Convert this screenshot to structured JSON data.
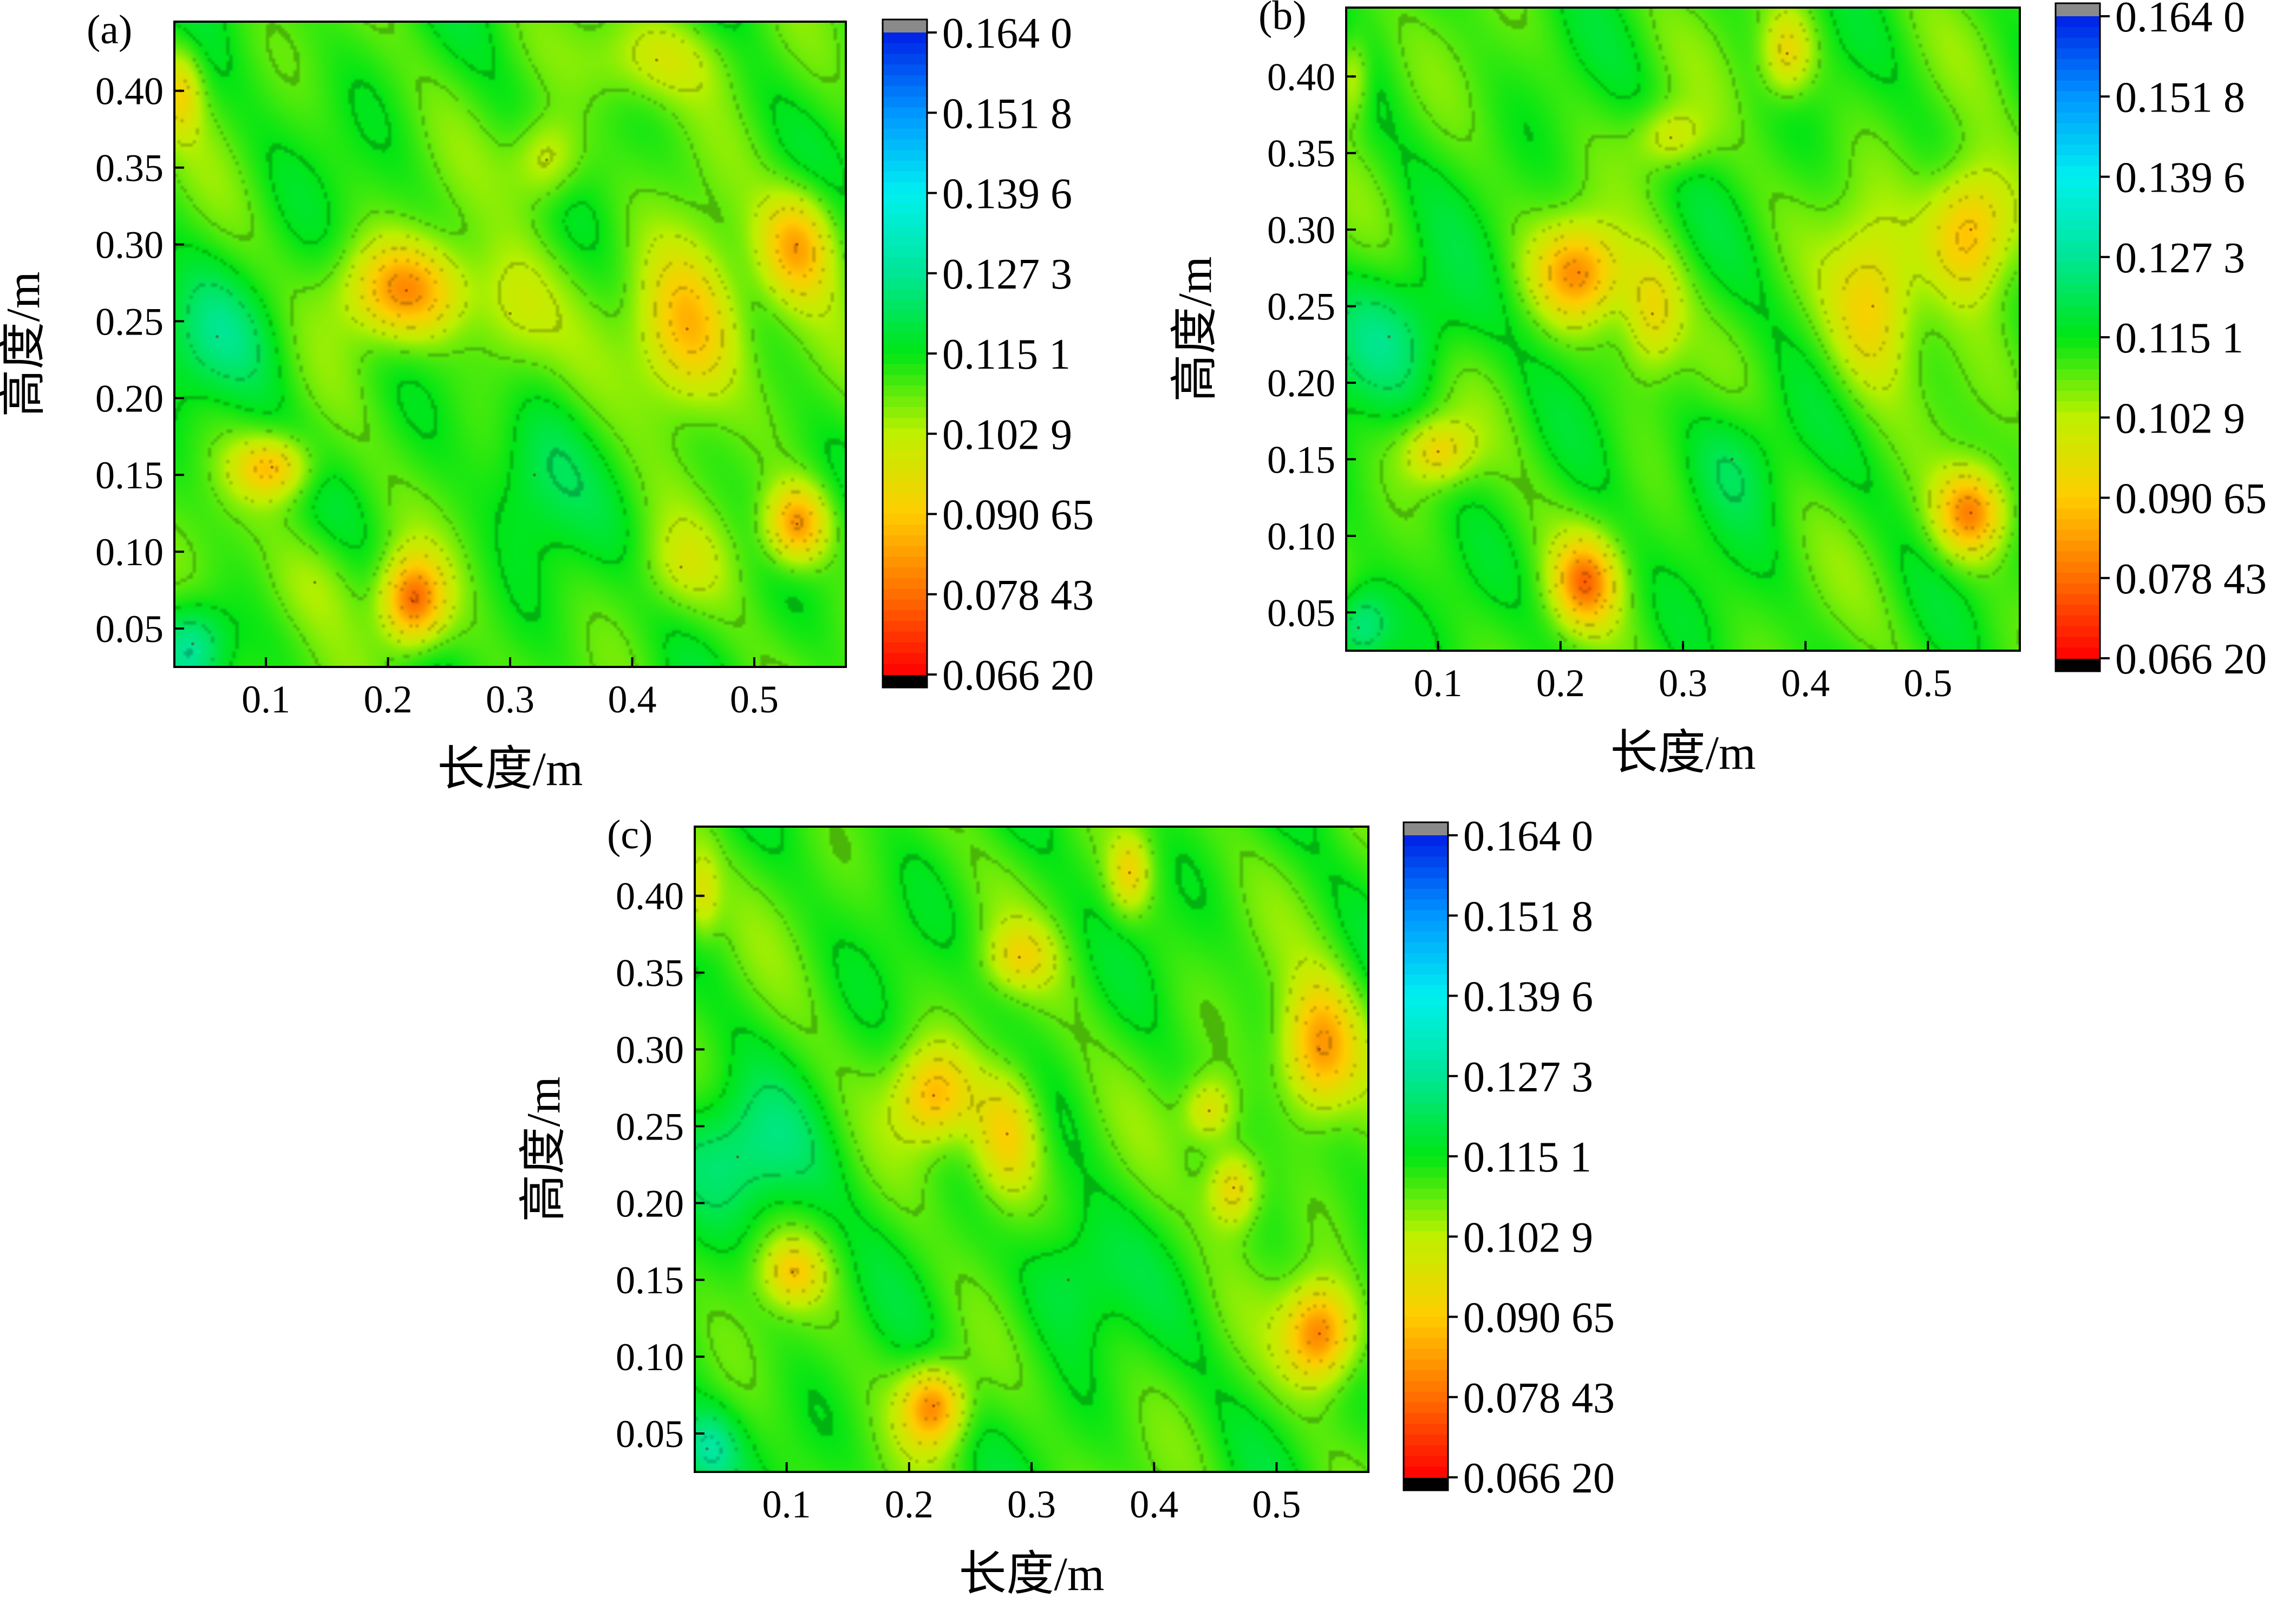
{
  "chart_data": [
    {
      "type": "heatmap",
      "panel_label": "(a)",
      "xlabel": "长度/m",
      "ylabel": "高度/m",
      "xlim": [
        0.025,
        0.575
      ],
      "ylim": [
        0.025,
        0.445
      ],
      "x_ticks": [
        "0.1",
        "0.2",
        "0.3",
        "0.4",
        "0.5"
      ],
      "y_ticks": [
        "0.05",
        "0.10",
        "0.15",
        "0.20",
        "0.25",
        "0.30",
        "0.35",
        "0.40"
      ],
      "colorbar_labels": [
        "0.164 0",
        "0.151 8",
        "0.139 6",
        "0.127 3",
        "0.115 1",
        "0.102 9",
        "0.090 65",
        "0.078 43",
        "0.066 20"
      ],
      "colorbar_values": [
        0.164,
        0.1518,
        0.1396,
        0.1273,
        0.1151,
        0.1029,
        0.09065,
        0.07843,
        0.0662
      ],
      "baseline_value": 0.112,
      "features": [
        {
          "x": 0.215,
          "y": 0.27,
          "value": 0.084,
          "sx": 0.035,
          "sy": 0.022
        },
        {
          "x": 0.445,
          "y": 0.245,
          "value": 0.086,
          "sx": 0.03,
          "sy": 0.038
        },
        {
          "x": 0.535,
          "y": 0.3,
          "value": 0.087,
          "sx": 0.022,
          "sy": 0.025
        },
        {
          "x": 0.535,
          "y": 0.118,
          "value": 0.083,
          "sx": 0.018,
          "sy": 0.018
        },
        {
          "x": 0.22,
          "y": 0.068,
          "value": 0.078,
          "sx": 0.018,
          "sy": 0.02
        },
        {
          "x": 0.105,
          "y": 0.155,
          "value": 0.09,
          "sx": 0.022,
          "sy": 0.014
        },
        {
          "x": 0.33,
          "y": 0.355,
          "value": 0.097,
          "sx": 0.02,
          "sy": 0.02
        },
        {
          "x": 0.3,
          "y": 0.255,
          "value": 0.101,
          "sx": 0.025,
          "sy": 0.03
        },
        {
          "x": 0.03,
          "y": 0.4,
          "value": 0.096,
          "sx": 0.012,
          "sy": 0.02
        },
        {
          "x": 0.32,
          "y": 0.15,
          "value": 0.12,
          "sx": 0.03,
          "sy": 0.035
        },
        {
          "x": 0.06,
          "y": 0.24,
          "value": 0.121,
          "sx": 0.04,
          "sy": 0.03
        },
        {
          "x": 0.04,
          "y": 0.04,
          "value": 0.127,
          "sx": 0.02,
          "sy": 0.02
        },
        {
          "x": 0.44,
          "y": 0.09,
          "value": 0.104,
          "sx": 0.025,
          "sy": 0.02
        },
        {
          "x": 0.14,
          "y": 0.08,
          "value": 0.105,
          "sx": 0.03,
          "sy": 0.025
        },
        {
          "x": 0.42,
          "y": 0.42,
          "value": 0.1,
          "sx": 0.04,
          "sy": 0.02
        }
      ]
    },
    {
      "type": "heatmap",
      "panel_label": "(b)",
      "xlabel": "长度/m",
      "ylabel": "高度/m",
      "xlim": [
        0.025,
        0.575
      ],
      "ylim": [
        0.025,
        0.445
      ],
      "x_ticks": [
        "0.1",
        "0.2",
        "0.3",
        "0.4",
        "0.5"
      ],
      "y_ticks": [
        "0.05",
        "0.10",
        "0.15",
        "0.20",
        "0.25",
        "0.30",
        "0.35",
        "0.40"
      ],
      "colorbar_labels": [
        "0.164 0",
        "0.151 8",
        "0.139 6",
        "0.127 3",
        "0.115 1",
        "0.102 9",
        "0.090 65",
        "0.078 43",
        "0.066 20"
      ],
      "colorbar_values": [
        0.164,
        0.1518,
        0.1396,
        0.1273,
        0.1151,
        0.1029,
        0.09065,
        0.07843,
        0.0662
      ],
      "baseline_value": 0.112,
      "features": [
        {
          "x": 0.215,
          "y": 0.272,
          "value": 0.085,
          "sx": 0.025,
          "sy": 0.022
        },
        {
          "x": 0.275,
          "y": 0.245,
          "value": 0.094,
          "sx": 0.018,
          "sy": 0.028
        },
        {
          "x": 0.455,
          "y": 0.25,
          "value": 0.092,
          "sx": 0.025,
          "sy": 0.04
        },
        {
          "x": 0.535,
          "y": 0.3,
          "value": 0.084,
          "sx": 0.025,
          "sy": 0.03
        },
        {
          "x": 0.535,
          "y": 0.115,
          "value": 0.081,
          "sx": 0.02,
          "sy": 0.02
        },
        {
          "x": 0.22,
          "y": 0.07,
          "value": 0.084,
          "sx": 0.018,
          "sy": 0.02
        },
        {
          "x": 0.1,
          "y": 0.155,
          "value": 0.093,
          "sx": 0.02,
          "sy": 0.015
        },
        {
          "x": 0.385,
          "y": 0.415,
          "value": 0.094,
          "sx": 0.015,
          "sy": 0.02
        },
        {
          "x": 0.29,
          "y": 0.36,
          "value": 0.098,
          "sx": 0.02,
          "sy": 0.015
        },
        {
          "x": 0.06,
          "y": 0.23,
          "value": 0.123,
          "sx": 0.045,
          "sy": 0.03
        },
        {
          "x": 0.34,
          "y": 0.15,
          "value": 0.121,
          "sx": 0.03,
          "sy": 0.03
        },
        {
          "x": 0.035,
          "y": 0.04,
          "value": 0.128,
          "sx": 0.018,
          "sy": 0.018
        },
        {
          "x": 0.03,
          "y": 0.4,
          "value": 0.098,
          "sx": 0.01,
          "sy": 0.02
        }
      ]
    },
    {
      "type": "heatmap",
      "panel_label": "(c)",
      "xlabel": "长度/m",
      "ylabel": "高度/m",
      "xlim": [
        0.025,
        0.575
      ],
      "ylim": [
        0.025,
        0.445
      ],
      "x_ticks": [
        "0.1",
        "0.2",
        "0.3",
        "0.4",
        "0.5"
      ],
      "y_ticks": [
        "0.05",
        "0.10",
        "0.15",
        "0.20",
        "0.25",
        "0.30",
        "0.35",
        "0.40"
      ],
      "colorbar_labels": [
        "0.164 0",
        "0.151 8",
        "0.139 6",
        "0.127 3",
        "0.115 1",
        "0.102 9",
        "0.090 65",
        "0.078 43",
        "0.066 20"
      ],
      "colorbar_values": [
        0.164,
        0.1518,
        0.1396,
        0.1273,
        0.1151,
        0.1029,
        0.09065,
        0.07843,
        0.0662
      ],
      "baseline_value": 0.112,
      "features": [
        {
          "x": 0.22,
          "y": 0.27,
          "value": 0.089,
          "sx": 0.022,
          "sy": 0.022
        },
        {
          "x": 0.28,
          "y": 0.245,
          "value": 0.091,
          "sx": 0.02,
          "sy": 0.03
        },
        {
          "x": 0.465,
          "y": 0.21,
          "value": 0.091,
          "sx": 0.015,
          "sy": 0.018
        },
        {
          "x": 0.445,
          "y": 0.26,
          "value": 0.096,
          "sx": 0.015,
          "sy": 0.015
        },
        {
          "x": 0.535,
          "y": 0.3,
          "value": 0.083,
          "sx": 0.022,
          "sy": 0.03
        },
        {
          "x": 0.535,
          "y": 0.115,
          "value": 0.08,
          "sx": 0.02,
          "sy": 0.022
        },
        {
          "x": 0.22,
          "y": 0.068,
          "value": 0.082,
          "sx": 0.018,
          "sy": 0.018
        },
        {
          "x": 0.105,
          "y": 0.155,
          "value": 0.095,
          "sx": 0.018,
          "sy": 0.015
        },
        {
          "x": 0.38,
          "y": 0.415,
          "value": 0.095,
          "sx": 0.012,
          "sy": 0.018
        },
        {
          "x": 0.29,
          "y": 0.36,
          "value": 0.099,
          "sx": 0.02,
          "sy": 0.015
        },
        {
          "x": 0.06,
          "y": 0.23,
          "value": 0.124,
          "sx": 0.045,
          "sy": 0.03
        },
        {
          "x": 0.33,
          "y": 0.15,
          "value": 0.121,
          "sx": 0.03,
          "sy": 0.03
        },
        {
          "x": 0.035,
          "y": 0.04,
          "value": 0.126,
          "sx": 0.018,
          "sy": 0.018
        },
        {
          "x": 0.03,
          "y": 0.4,
          "value": 0.098,
          "sx": 0.01,
          "sy": 0.02
        }
      ]
    }
  ]
}
